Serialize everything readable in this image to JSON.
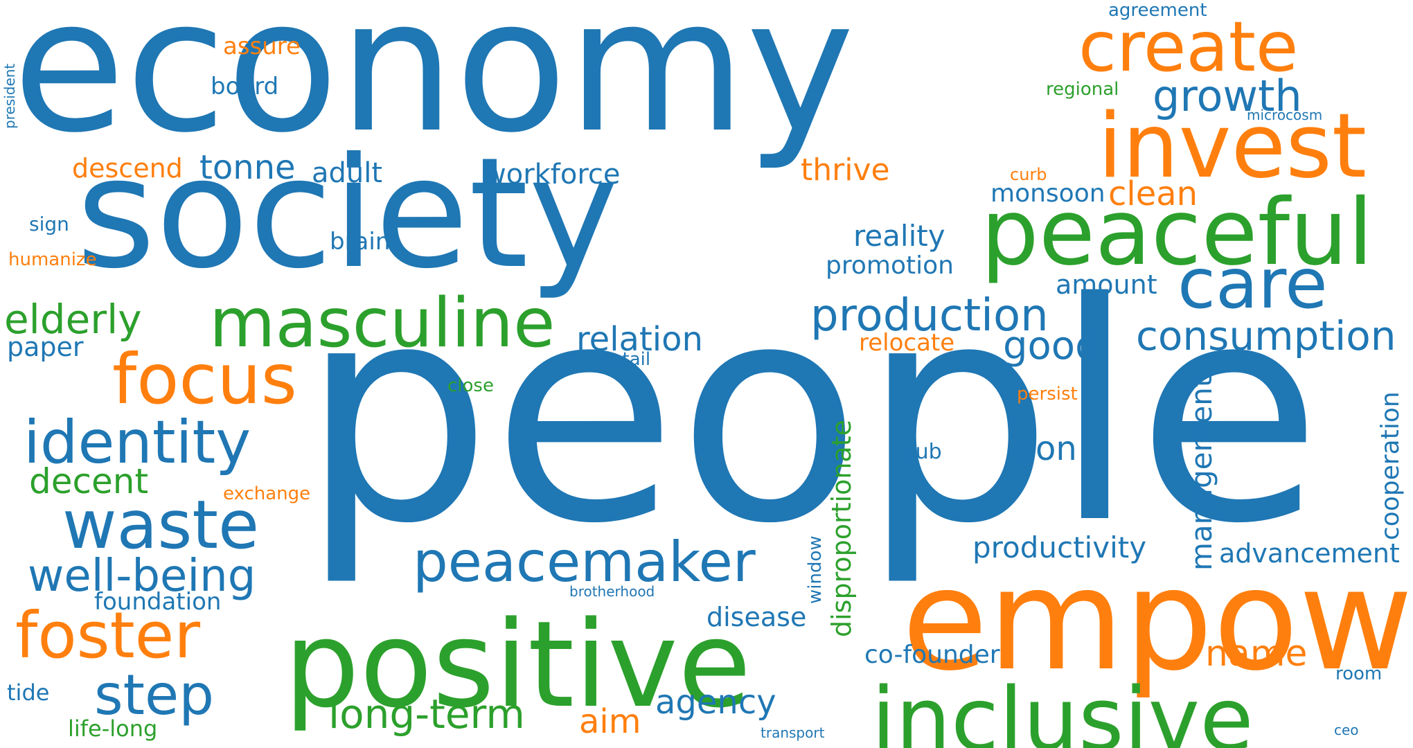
{
  "palette": {
    "blue": "#1f77b4",
    "orange": "#ff7f0e",
    "green": "#2ca02c"
  },
  "words": [
    {
      "key": "economy",
      "text": "economy",
      "color": "blue"
    },
    {
      "key": "society",
      "text": "society",
      "color": "blue"
    },
    {
      "key": "people",
      "text": "people",
      "color": "blue"
    },
    {
      "key": "empower",
      "text": "empower",
      "color": "orange"
    },
    {
      "key": "positive",
      "text": "positive",
      "color": "green"
    },
    {
      "key": "inclusive",
      "text": "inclusive",
      "color": "green"
    },
    {
      "key": "peaceful",
      "text": "peaceful",
      "color": "green"
    },
    {
      "key": "invest",
      "text": "invest",
      "color": "orange"
    },
    {
      "key": "create",
      "text": "create",
      "color": "orange"
    },
    {
      "key": "care",
      "text": "care",
      "color": "blue"
    },
    {
      "key": "masculine",
      "text": "masculine",
      "color": "green"
    },
    {
      "key": "focus",
      "text": "focus",
      "color": "orange"
    },
    {
      "key": "identity",
      "text": "identity",
      "color": "blue"
    },
    {
      "key": "waste",
      "text": "waste",
      "color": "blue"
    },
    {
      "key": "peacemaker",
      "text": "peacemaker",
      "color": "blue"
    },
    {
      "key": "foster",
      "text": "foster",
      "color": "orange"
    },
    {
      "key": "well-being",
      "text": "well-being",
      "color": "blue"
    },
    {
      "key": "step",
      "text": "step",
      "color": "blue"
    },
    {
      "key": "growth",
      "text": "growth",
      "color": "blue"
    },
    {
      "key": "production",
      "text": "production",
      "color": "blue"
    },
    {
      "key": "consumption",
      "text": "consumption",
      "color": "blue"
    },
    {
      "key": "long-term",
      "text": "long-term",
      "color": "green"
    },
    {
      "key": "elderly",
      "text": "elderly",
      "color": "green"
    },
    {
      "key": "relation",
      "text": "relation",
      "color": "blue"
    },
    {
      "key": "good",
      "text": "good",
      "color": "blue"
    },
    {
      "key": "agency",
      "text": "agency",
      "color": "blue"
    },
    {
      "key": "decent",
      "text": "decent",
      "color": "green"
    },
    {
      "key": "name",
      "text": "name",
      "color": "orange"
    },
    {
      "key": "aim",
      "text": "aim",
      "color": "orange"
    },
    {
      "key": "tonne",
      "text": "tonne",
      "color": "blue"
    },
    {
      "key": "reality",
      "text": "reality",
      "color": "blue"
    },
    {
      "key": "clean",
      "text": "clean",
      "color": "orange"
    },
    {
      "key": "son",
      "text": "son",
      "color": "blue"
    },
    {
      "key": "productivity",
      "text": "productivity",
      "color": "blue"
    },
    {
      "key": "advancement",
      "text": "advancement",
      "color": "blue"
    },
    {
      "key": "workforce",
      "text": "workforce",
      "color": "blue"
    },
    {
      "key": "adult",
      "text": "adult",
      "color": "blue"
    },
    {
      "key": "thrive",
      "text": "thrive",
      "color": "orange"
    },
    {
      "key": "descend",
      "text": "descend",
      "color": "orange"
    },
    {
      "key": "monsoon",
      "text": "monsoon",
      "color": "blue"
    },
    {
      "key": "promotion",
      "text": "promotion",
      "color": "blue"
    },
    {
      "key": "amount",
      "text": "amount",
      "color": "blue"
    },
    {
      "key": "paper",
      "text": "paper",
      "color": "blue"
    },
    {
      "key": "co-founder",
      "text": "co-founder",
      "color": "blue"
    },
    {
      "key": "disease",
      "text": "disease",
      "color": "blue"
    },
    {
      "key": "foundation",
      "text": "foundation",
      "color": "blue"
    },
    {
      "key": "brain",
      "text": "brain",
      "color": "blue"
    },
    {
      "key": "board",
      "text": "board",
      "color": "blue"
    },
    {
      "key": "assure",
      "text": "assure",
      "color": "orange"
    },
    {
      "key": "relocate",
      "text": "relocate",
      "color": "orange"
    },
    {
      "key": "life-long",
      "text": "life-long",
      "color": "green"
    },
    {
      "key": "tide",
      "text": "tide",
      "color": "blue"
    },
    {
      "key": "exchange",
      "text": "exchange",
      "color": "orange"
    },
    {
      "key": "humanize",
      "text": "humanize",
      "color": "orange"
    },
    {
      "key": "sign",
      "text": "sign",
      "color": "blue"
    },
    {
      "key": "close",
      "text": "close",
      "color": "green"
    },
    {
      "key": "detail",
      "text": "detail",
      "color": "blue"
    },
    {
      "key": "persist",
      "text": "persist",
      "color": "orange"
    },
    {
      "key": "sub",
      "text": "sub",
      "color": "blue"
    },
    {
      "key": "regional",
      "text": "regional",
      "color": "green"
    },
    {
      "key": "agreement",
      "text": "agreement",
      "color": "blue"
    },
    {
      "key": "microcosm",
      "text": "microcosm",
      "color": "blue"
    },
    {
      "key": "curb",
      "text": "curb",
      "color": "orange"
    },
    {
      "key": "room",
      "text": "room",
      "color": "blue"
    },
    {
      "key": "ceo",
      "text": "ceo",
      "color": "blue"
    },
    {
      "key": "transport",
      "text": "transport",
      "color": "blue"
    },
    {
      "key": "brotherhood",
      "text": "brotherhood",
      "color": "blue"
    },
    {
      "key": "disproportionate",
      "text": "disproportionate",
      "color": "green"
    },
    {
      "key": "management",
      "text": "management",
      "color": "blue"
    },
    {
      "key": "cooperation",
      "text": "cooperation",
      "color": "blue"
    },
    {
      "key": "window",
      "text": "window",
      "color": "blue"
    },
    {
      "key": "president",
      "text": "president",
      "color": "blue"
    }
  ]
}
